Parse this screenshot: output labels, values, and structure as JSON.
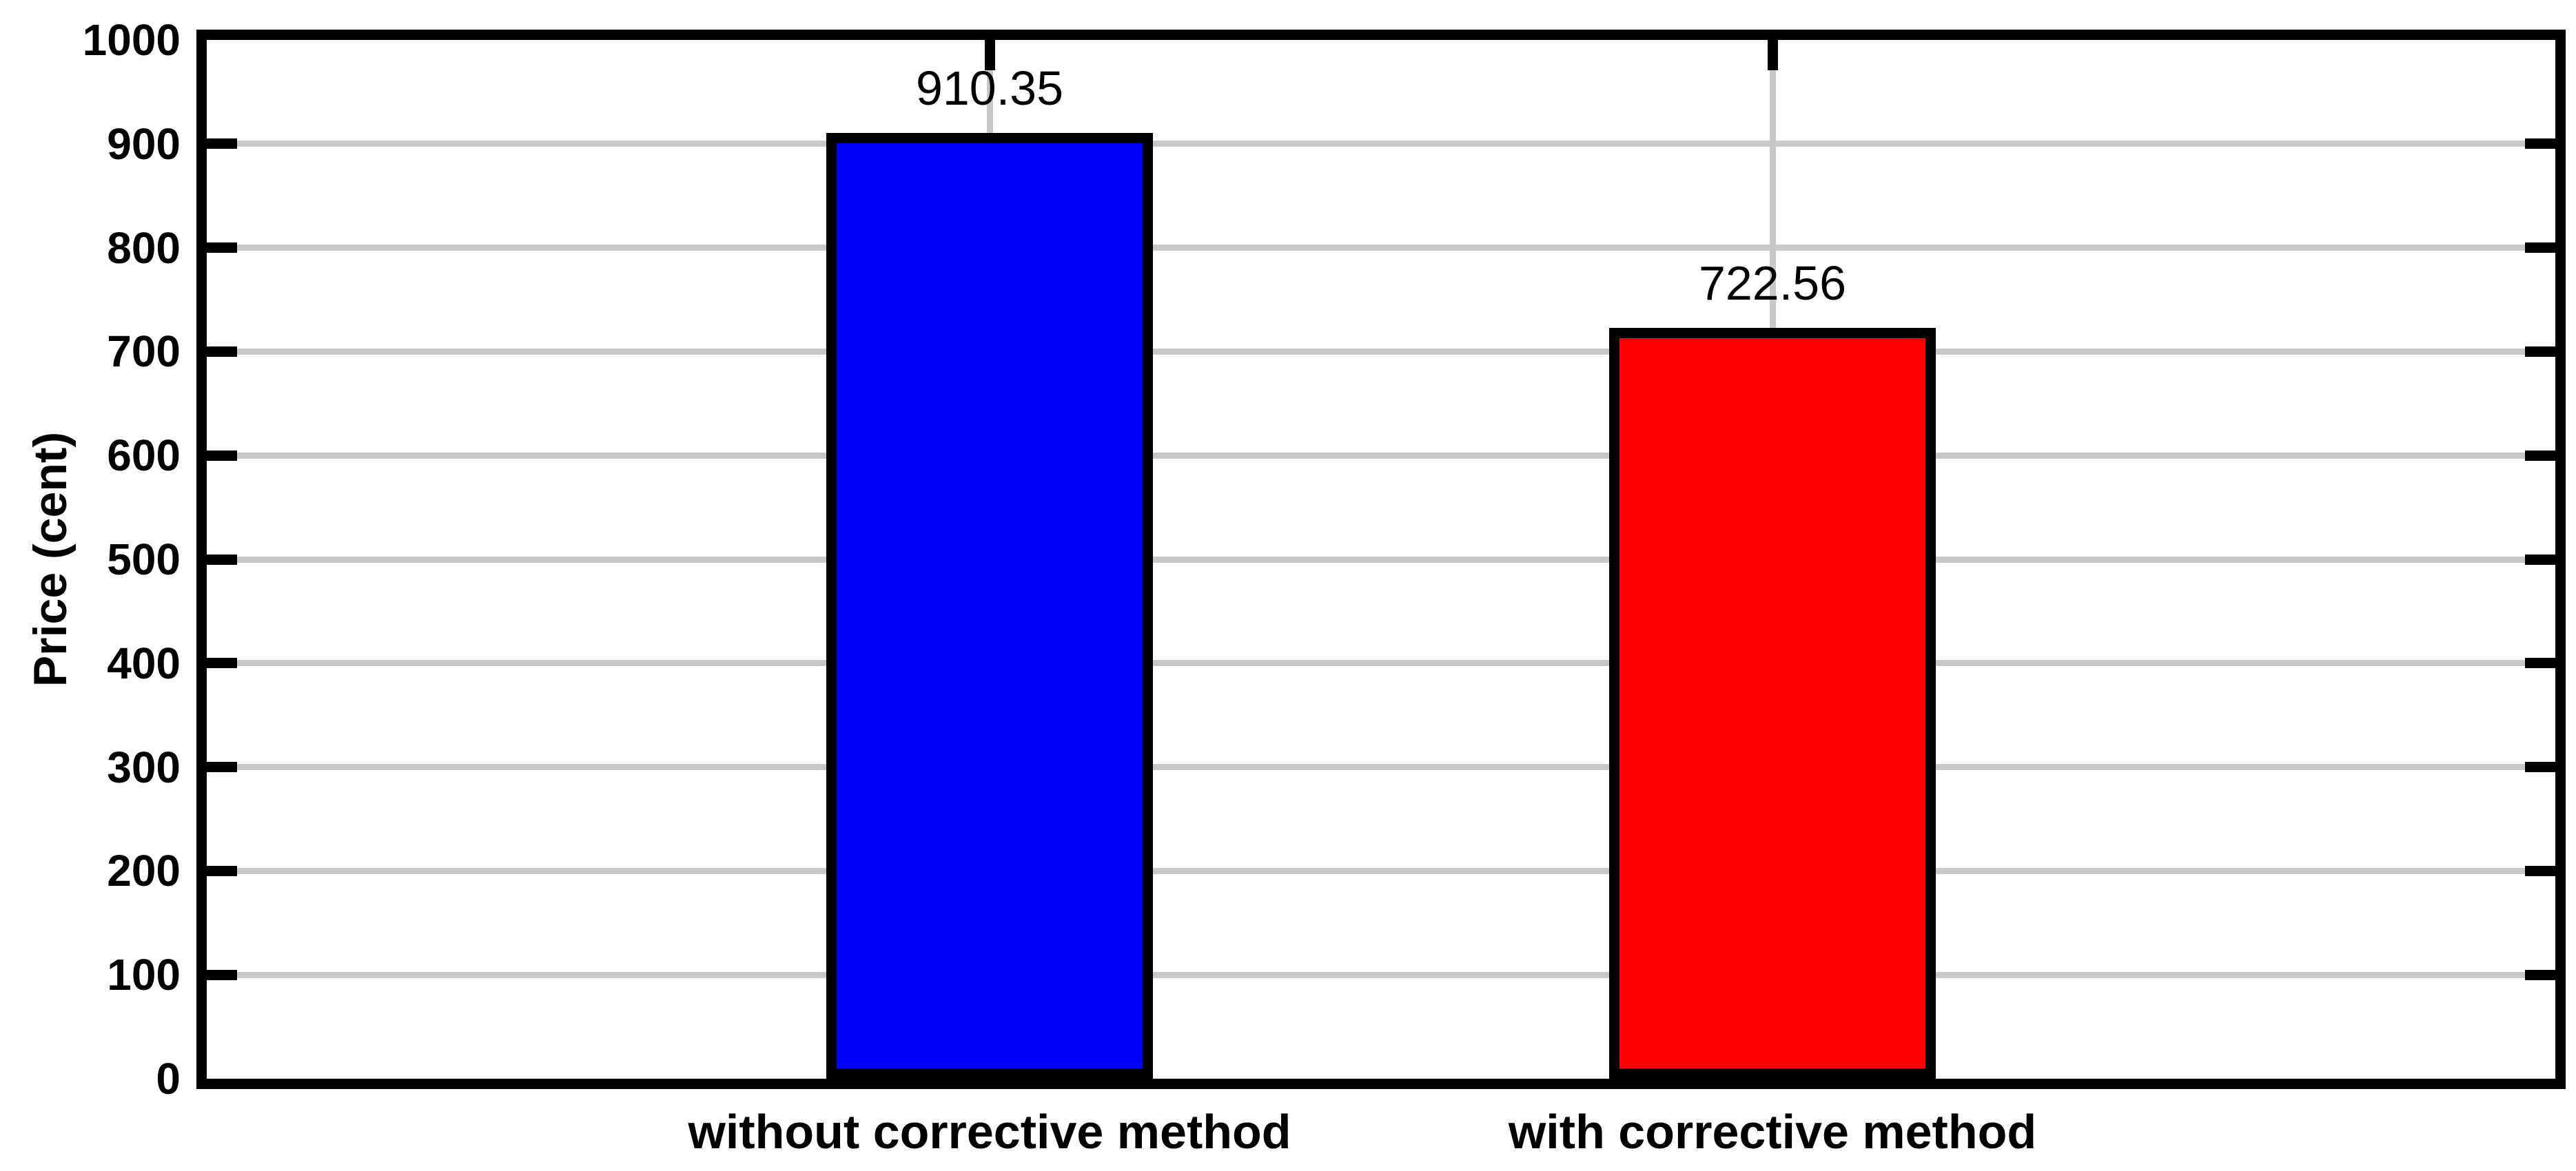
{
  "chart_data": {
    "type": "bar",
    "title": "",
    "xlabel": "",
    "ylabel": "Price (cent)",
    "categories": [
      "without corrective method",
      "with corrective method"
    ],
    "values": [
      910.35,
      722.56
    ],
    "value_labels": [
      "910.35",
      "722.56"
    ],
    "bar_colors": [
      "#0000ff",
      "#ff0000"
    ],
    "bar_edge_color": "#000000",
    "ylim": [
      0,
      1000
    ],
    "yticks": [
      0,
      100,
      200,
      300,
      400,
      500,
      600,
      700,
      800,
      900,
      1000
    ],
    "ytick_labels": [
      "0",
      "100",
      "200",
      "300",
      "400",
      "500",
      "600",
      "700",
      "800",
      "900",
      "1000"
    ],
    "grid": "on",
    "gridline_color": "#c8c8c8",
    "axis_color": "#000000",
    "background_color": "#ffffff",
    "legend": "none"
  }
}
